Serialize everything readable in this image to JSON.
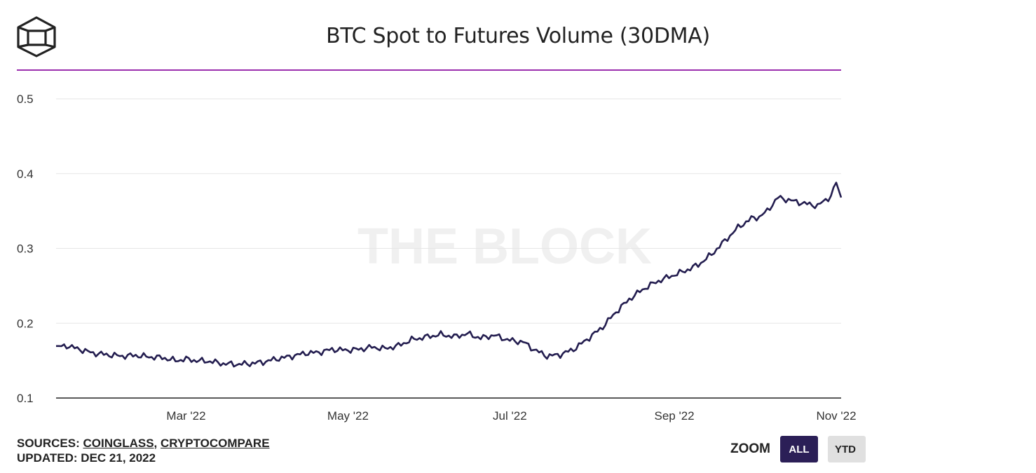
{
  "header": {
    "logo_name": "the-block-cube-logo",
    "title": "BTC Spot to Futures Volume (30DMA)",
    "accent_color": "#9b2fae"
  },
  "watermark": "THE BLOCK",
  "footer": {
    "sources_label": "SOURCES:",
    "sources": [
      "COINGLASS",
      "CRYPTOCOMPARE"
    ],
    "sources_separator": ",",
    "updated": "UPDATED: DEC 21, 2022"
  },
  "zoom": {
    "label": "ZOOM",
    "buttons": [
      {
        "label": "ALL",
        "active": true
      },
      {
        "label": "YTD",
        "active": false
      }
    ],
    "active_color": "#2b1f57"
  },
  "chart_data": {
    "type": "line",
    "title": "BTC Spot to Futures Volume (30DMA)",
    "xlabel": "",
    "ylabel": "",
    "ylim": [
      0.1,
      0.5
    ],
    "yticks": [
      0.1,
      0.2,
      0.3,
      0.4,
      0.5
    ],
    "xlim": [
      "2022-01-11",
      "2022-11-01"
    ],
    "xticks": [
      {
        "label": "Mar '22",
        "date": "2022-03-01"
      },
      {
        "label": "May '22",
        "date": "2022-05-01"
      },
      {
        "label": "Jul '22",
        "date": "2022-07-01"
      },
      {
        "label": "Sep '22",
        "date": "2022-09-01"
      },
      {
        "label": "Nov '22",
        "date": "2022-11-01"
      }
    ],
    "grid": true,
    "line_color": "#231d4f",
    "series": [
      {
        "x": [
          "2022-01-11",
          "2022-01-15",
          "2022-01-20",
          "2022-01-25",
          "2022-01-30",
          "2022-02-05",
          "2022-02-10",
          "2022-02-15",
          "2022-02-20",
          "2022-02-25",
          "2022-03-01",
          "2022-03-05",
          "2022-03-10",
          "2022-03-15",
          "2022-03-20",
          "2022-03-25",
          "2022-03-30",
          "2022-04-05",
          "2022-04-10",
          "2022-04-15",
          "2022-04-20",
          "2022-04-25",
          "2022-04-30",
          "2022-05-05",
          "2022-05-10",
          "2022-05-15",
          "2022-05-20",
          "2022-05-25",
          "2022-05-31",
          "2022-06-05",
          "2022-06-10",
          "2022-06-15",
          "2022-06-20",
          "2022-06-25",
          "2022-06-30",
          "2022-07-03",
          "2022-07-06",
          "2022-07-10",
          "2022-07-15",
          "2022-07-20",
          "2022-07-25",
          "2022-07-30",
          "2022-08-05",
          "2022-08-10",
          "2022-08-15",
          "2022-08-20",
          "2022-08-25",
          "2022-08-30",
          "2022-09-05",
          "2022-09-10",
          "2022-09-15",
          "2022-09-20",
          "2022-09-25",
          "2022-09-30",
          "2022-10-03",
          "2022-10-06",
          "2022-10-10",
          "2022-10-15",
          "2022-10-20",
          "2022-10-25",
          "2022-10-30",
          "2022-11-01"
        ],
        "y": [
          0.168,
          0.17,
          0.165,
          0.16,
          0.158,
          0.156,
          0.157,
          0.155,
          0.154,
          0.15,
          0.152,
          0.15,
          0.149,
          0.146,
          0.145,
          0.146,
          0.148,
          0.153,
          0.156,
          0.16,
          0.161,
          0.165,
          0.164,
          0.165,
          0.168,
          0.166,
          0.17,
          0.178,
          0.182,
          0.185,
          0.182,
          0.186,
          0.18,
          0.184,
          0.178,
          0.176,
          0.175,
          0.165,
          0.156,
          0.158,
          0.165,
          0.178,
          0.195,
          0.215,
          0.232,
          0.245,
          0.255,
          0.262,
          0.27,
          0.278,
          0.292,
          0.31,
          0.328,
          0.34,
          0.342,
          0.35,
          0.368,
          0.364,
          0.36,
          0.357,
          0.37,
          0.388
        ]
      }
    ]
  }
}
